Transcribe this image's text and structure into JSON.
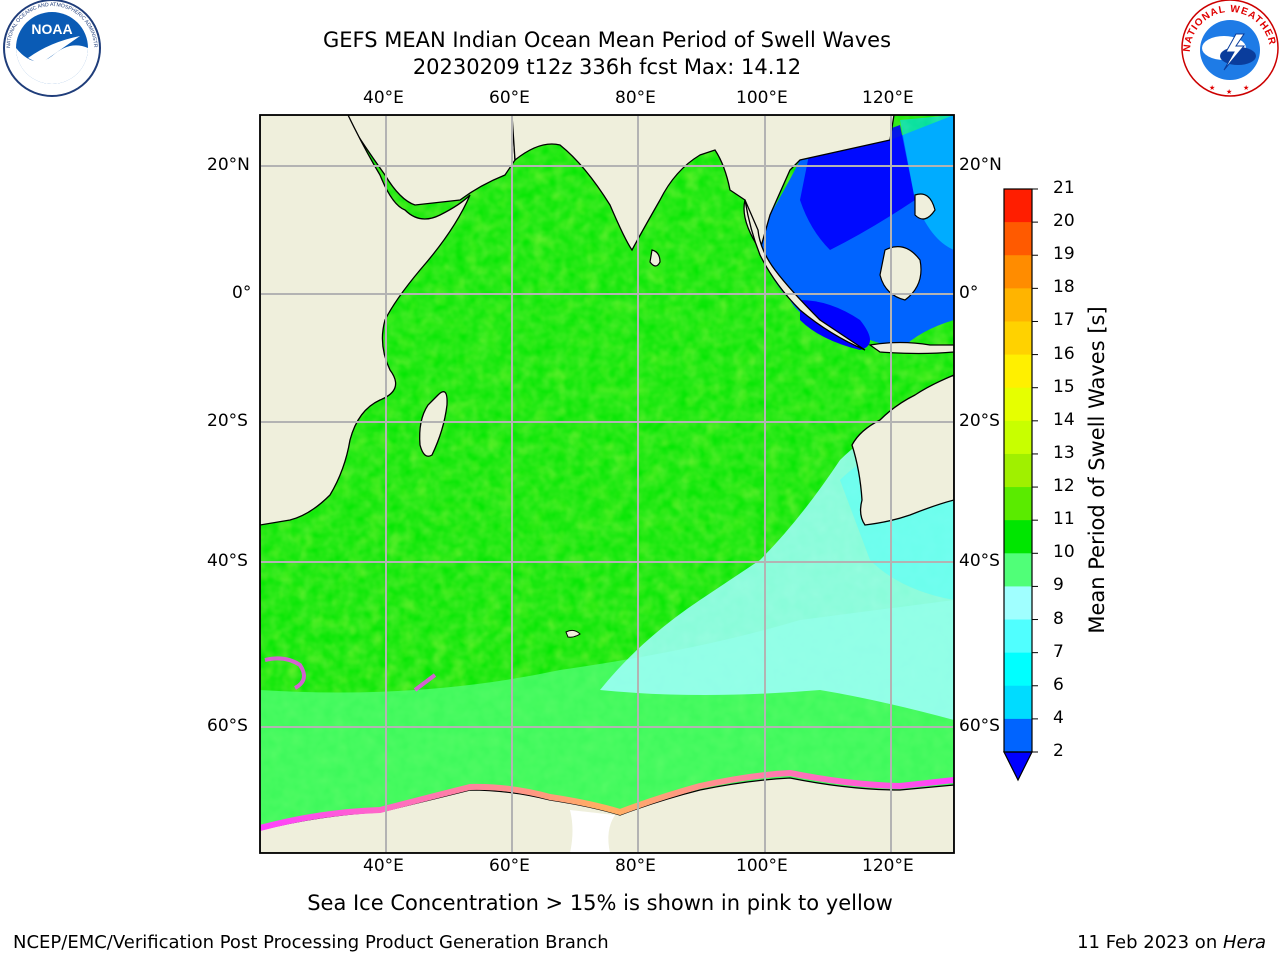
{
  "header": {
    "title_line1": "GEFS MEAN Indian Ocean Mean Period of Swell Waves",
    "title_line2": "20230209 t12z 336h fcst   Max: 14.12"
  },
  "logos": {
    "left": "NOAA",
    "left_ring": "NATIONAL OCEANIC AND ATMOSPHERIC ADMINISTRATION · U.S. DEPARTMENT OF COMMERCE",
    "right_ring": "NATIONAL WEATHER SERVICE"
  },
  "map": {
    "lon_labels": [
      "40°E",
      "60°E",
      "80°E",
      "100°E",
      "120°E"
    ],
    "lat_labels": [
      "20°N",
      "0°",
      "20°S",
      "40°S",
      "60°S"
    ],
    "extent": {
      "lon": [
        20,
        130
      ],
      "lat": [
        -70,
        28
      ]
    }
  },
  "colorbar": {
    "title": "Mean Period of Swell Waves [s]",
    "ticks": [
      "2",
      "4",
      "6",
      "7",
      "8",
      "9",
      "10",
      "11",
      "12",
      "13",
      "14",
      "15",
      "16",
      "17",
      "18",
      "19",
      "20",
      "21"
    ],
    "colors": [
      "#0064ff",
      "#00dcff",
      "#00ffff",
      "#50ffff",
      "#a0ffff",
      "#50ff78",
      "#00e600",
      "#5aeb00",
      "#a0f000",
      "#c8ff00",
      "#e6ff00",
      "#fff000",
      "#ffd200",
      "#ffb400",
      "#ff8c00",
      "#ff5a00",
      "#ff1e00"
    ],
    "under_color": "#0000ff"
  },
  "note": "Sea Ice Concentration > 15% is shown in pink to yellow",
  "footer": {
    "left": "NCEP/EMC/Verification Post Processing Product Generation Branch",
    "right_date": "11 Feb 2023 on ",
    "right_host": "Hera"
  }
}
